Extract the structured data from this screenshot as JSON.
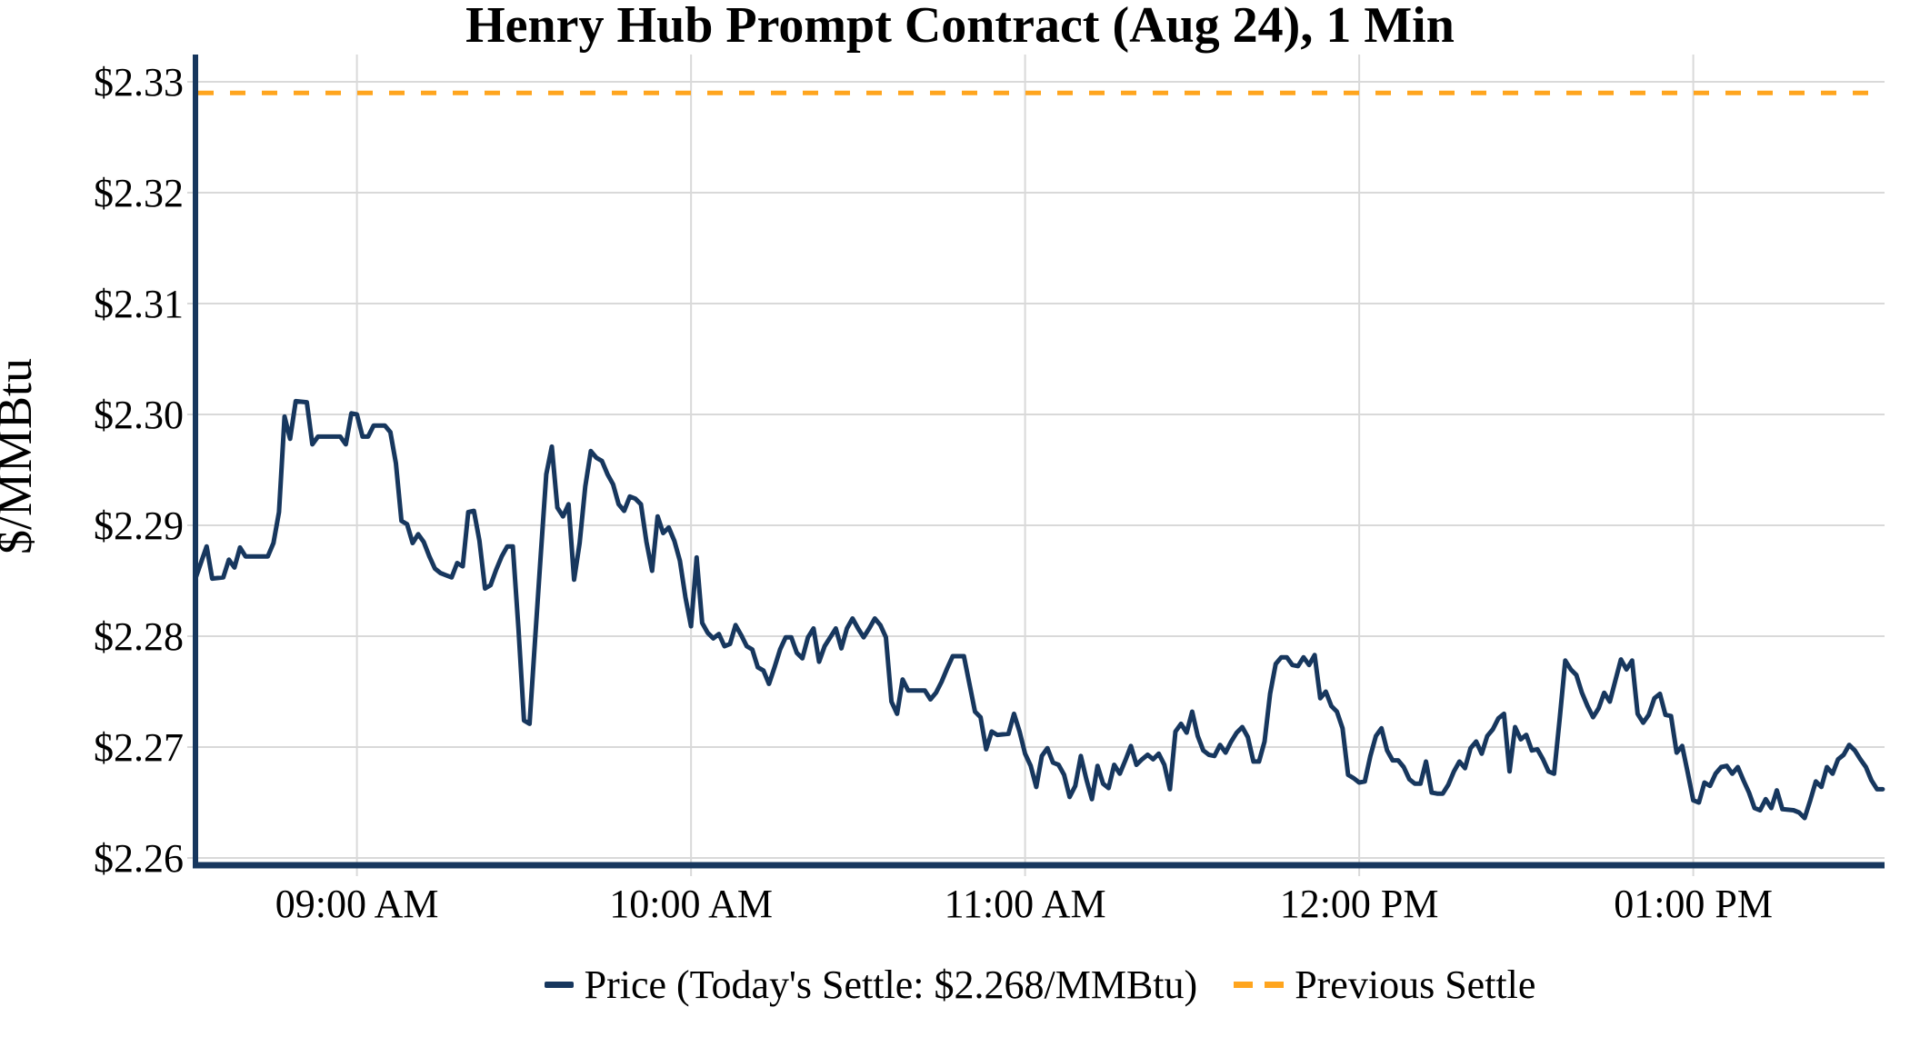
{
  "title": "Henry Hub Prompt Contract (Aug 24), 1 Min",
  "y_axis": {
    "title": "$/MMBtu",
    "tick_labels": [
      "$2.26",
      "$2.27",
      "$2.28",
      "$2.29",
      "$2.30",
      "$2.31",
      "$2.32",
      "$2.33"
    ],
    "tick_values": [
      2.26,
      2.27,
      2.28,
      2.29,
      2.3,
      2.31,
      2.32,
      2.33
    ]
  },
  "x_axis": {
    "tick_labels": [
      "09:00 AM",
      "10:00 AM",
      "11:00 AM",
      "12:00 PM",
      "01:00 PM"
    ],
    "tick_minutes": [
      29,
      89,
      149,
      209,
      269
    ],
    "start_time": "08:31 AM",
    "end_time": "01:34 PM"
  },
  "legend": {
    "price_label": "Price (Today's Settle: $2.268/MMBtu)",
    "prev_settle_label": "Previous Settle"
  },
  "todays_settle": "$2.268/MMBtu",
  "colors": {
    "price_line": "#17375E",
    "prev_settle_line": "#FFA51E",
    "grid": "#D9D9D9",
    "axis": "#17375E",
    "text": "#000000"
  },
  "chart_data": {
    "type": "line",
    "title": "Henry Hub Prompt Contract (Aug 24), 1 Min",
    "xlabel": "",
    "ylabel": "$/MMBtu",
    "x_unit": "minutes after 08:31 AM",
    "ylim": [
      2.2593,
      2.3325
    ],
    "grid": true,
    "legend_position": "bottom",
    "previous_settle": 2.329,
    "series": [
      {
        "name": "Price",
        "points": [
          [
            0,
            2.2852
          ],
          [
            2,
            2.2881
          ],
          [
            3,
            2.2852
          ],
          [
            5,
            2.2853
          ],
          [
            6,
            2.2869
          ],
          [
            7,
            2.2862
          ],
          [
            8,
            2.288
          ],
          [
            9,
            2.2872
          ],
          [
            13,
            2.2872
          ],
          [
            14,
            2.2884
          ],
          [
            15,
            2.2912
          ],
          [
            16,
            2.2998
          ],
          [
            17,
            2.2978
          ],
          [
            18,
            2.3012
          ],
          [
            20,
            2.3011
          ],
          [
            21,
            2.2973
          ],
          [
            22,
            2.298
          ],
          [
            26,
            2.298
          ],
          [
            27,
            2.2973
          ],
          [
            28,
            2.3001
          ],
          [
            29,
            2.3
          ],
          [
            30,
            2.298
          ],
          [
            31,
            2.298
          ],
          [
            32,
            2.299
          ],
          [
            34,
            2.299
          ],
          [
            35,
            2.2984
          ],
          [
            36,
            2.2956
          ],
          [
            37,
            2.2904
          ],
          [
            38,
            2.2901
          ],
          [
            39,
            2.2884
          ],
          [
            40,
            2.2892
          ],
          [
            41,
            2.2885
          ],
          [
            42,
            2.2872
          ],
          [
            43,
            2.2861
          ],
          [
            44,
            2.2857
          ],
          [
            45,
            2.2855
          ],
          [
            46,
            2.2853
          ],
          [
            47,
            2.2866
          ],
          [
            48,
            2.2863
          ],
          [
            49,
            2.2912
          ],
          [
            50,
            2.2913
          ],
          [
            51,
            2.2886
          ],
          [
            52,
            2.2843
          ],
          [
            53,
            2.2846
          ],
          [
            54,
            2.286
          ],
          [
            55,
            2.2872
          ],
          [
            56,
            2.2881
          ],
          [
            57,
            2.2881
          ],
          [
            58,
            2.2807
          ],
          [
            59,
            2.2724
          ],
          [
            60,
            2.2721
          ],
          [
            61,
            2.2797
          ],
          [
            62,
            2.2873
          ],
          [
            63,
            2.2946
          ],
          [
            64,
            2.2971
          ],
          [
            65,
            2.2916
          ],
          [
            66,
            2.2908
          ],
          [
            67,
            2.2919
          ],
          [
            68,
            2.2851
          ],
          [
            69,
            2.2884
          ],
          [
            70,
            2.2935
          ],
          [
            71,
            2.2967
          ],
          [
            72,
            2.2961
          ],
          [
            73,
            2.2958
          ],
          [
            74,
            2.2946
          ],
          [
            75,
            2.2937
          ],
          [
            76,
            2.2919
          ],
          [
            77,
            2.2913
          ],
          [
            78,
            2.2926
          ],
          [
            79,
            2.2924
          ],
          [
            80,
            2.2919
          ],
          [
            81,
            2.2885
          ],
          [
            82,
            2.2859
          ],
          [
            83,
            2.2908
          ],
          [
            84,
            2.2893
          ],
          [
            85,
            2.2898
          ],
          [
            86,
            2.2886
          ],
          [
            87,
            2.2868
          ],
          [
            88,
            2.2835
          ],
          [
            89,
            2.2809
          ],
          [
            90,
            2.2871
          ],
          [
            91,
            2.2812
          ],
          [
            92,
            2.2803
          ],
          [
            93,
            2.2798
          ],
          [
            94,
            2.2802
          ],
          [
            95,
            2.2791
          ],
          [
            96,
            2.2793
          ],
          [
            97,
            2.281
          ],
          [
            98,
            2.2801
          ],
          [
            99,
            2.2791
          ],
          [
            100,
            2.2788
          ],
          [
            101,
            2.2772
          ],
          [
            102,
            2.2769
          ],
          [
            103,
            2.2757
          ],
          [
            104,
            2.2772
          ],
          [
            105,
            2.2788
          ],
          [
            106,
            2.2799
          ],
          [
            107,
            2.2799
          ],
          [
            108,
            2.2785
          ],
          [
            109,
            2.278
          ],
          [
            110,
            2.2799
          ],
          [
            111,
            2.2807
          ],
          [
            112,
            2.2777
          ],
          [
            113,
            2.2791
          ],
          [
            114,
            2.2799
          ],
          [
            115,
            2.2807
          ],
          [
            116,
            2.2789
          ],
          [
            117,
            2.2807
          ],
          [
            118,
            2.2816
          ],
          [
            119,
            2.2807
          ],
          [
            120,
            2.2799
          ],
          [
            121,
            2.2807
          ],
          [
            122,
            2.2816
          ],
          [
            123,
            2.281
          ],
          [
            124,
            2.2799
          ],
          [
            125,
            2.2741
          ],
          [
            126,
            2.273
          ],
          [
            127,
            2.2761
          ],
          [
            128,
            2.2751
          ],
          [
            131,
            2.2751
          ],
          [
            132,
            2.2743
          ],
          [
            133,
            2.2749
          ],
          [
            134,
            2.2759
          ],
          [
            135,
            2.2771
          ],
          [
            136,
            2.2782
          ],
          [
            138,
            2.2782
          ],
          [
            139,
            2.2757
          ],
          [
            140,
            2.2732
          ],
          [
            141,
            2.2727
          ],
          [
            142,
            2.2698
          ],
          [
            143,
            2.2714
          ],
          [
            144,
            2.2711
          ],
          [
            146,
            2.2712
          ],
          [
            147,
            2.273
          ],
          [
            148,
            2.2714
          ],
          [
            149,
            2.2694
          ],
          [
            150,
            2.2683
          ],
          [
            151,
            2.2664
          ],
          [
            152,
            2.2692
          ],
          [
            153,
            2.2699
          ],
          [
            154,
            2.2686
          ],
          [
            155,
            2.2684
          ],
          [
            156,
            2.2675
          ],
          [
            157,
            2.2655
          ],
          [
            158,
            2.2665
          ],
          [
            159,
            2.2692
          ],
          [
            160,
            2.2671
          ],
          [
            161,
            2.2653
          ],
          [
            162,
            2.2683
          ],
          [
            163,
            2.2667
          ],
          [
            164,
            2.2663
          ],
          [
            165,
            2.2684
          ],
          [
            166,
            2.2676
          ],
          [
            167,
            2.2688
          ],
          [
            168,
            2.2701
          ],
          [
            169,
            2.2684
          ],
          [
            170,
            2.2689
          ],
          [
            171,
            2.2693
          ],
          [
            172,
            2.2689
          ],
          [
            173,
            2.2694
          ],
          [
            174,
            2.2684
          ],
          [
            175,
            2.2662
          ],
          [
            176,
            2.2714
          ],
          [
            177,
            2.2721
          ],
          [
            178,
            2.2713
          ],
          [
            179,
            2.2732
          ],
          [
            180,
            2.271
          ],
          [
            181,
            2.2697
          ],
          [
            182,
            2.2693
          ],
          [
            183,
            2.2692
          ],
          [
            184,
            2.2702
          ],
          [
            185,
            2.2695
          ],
          [
            186,
            2.2705
          ],
          [
            187,
            2.2713
          ],
          [
            188,
            2.2718
          ],
          [
            189,
            2.2709
          ],
          [
            190,
            2.2687
          ],
          [
            191,
            2.2687
          ],
          [
            192,
            2.2705
          ],
          [
            193,
            2.2748
          ],
          [
            194,
            2.2775
          ],
          [
            195,
            2.2781
          ],
          [
            196,
            2.2781
          ],
          [
            197,
            2.2774
          ],
          [
            198,
            2.2773
          ],
          [
            199,
            2.2781
          ],
          [
            200,
            2.2774
          ],
          [
            201,
            2.2783
          ],
          [
            202,
            2.2744
          ],
          [
            203,
            2.275
          ],
          [
            204,
            2.2737
          ],
          [
            205,
            2.2732
          ],
          [
            206,
            2.2717
          ],
          [
            207,
            2.2675
          ],
          [
            208,
            2.2672
          ],
          [
            209,
            2.2668
          ],
          [
            210,
            2.2669
          ],
          [
            211,
            2.2692
          ],
          [
            212,
            2.271
          ],
          [
            213,
            2.2717
          ],
          [
            214,
            2.2697
          ],
          [
            215,
            2.2688
          ],
          [
            216,
            2.2688
          ],
          [
            217,
            2.2682
          ],
          [
            218,
            2.2671
          ],
          [
            219,
            2.2667
          ],
          [
            220,
            2.2667
          ],
          [
            221,
            2.2687
          ],
          [
            222,
            2.2659
          ],
          [
            223,
            2.2658
          ],
          [
            224,
            2.2658
          ],
          [
            225,
            2.2666
          ],
          [
            226,
            2.2678
          ],
          [
            227,
            2.2687
          ],
          [
            228,
            2.2681
          ],
          [
            229,
            2.2699
          ],
          [
            230,
            2.2705
          ],
          [
            231,
            2.2694
          ],
          [
            232,
            2.271
          ],
          [
            233,
            2.2716
          ],
          [
            234,
            2.2726
          ],
          [
            235,
            2.273
          ],
          [
            236,
            2.2678
          ],
          [
            237,
            2.2718
          ],
          [
            238,
            2.2707
          ],
          [
            239,
            2.2711
          ],
          [
            240,
            2.2697
          ],
          [
            241,
            2.2698
          ],
          [
            242,
            2.2689
          ],
          [
            243,
            2.2678
          ],
          [
            244,
            2.2676
          ],
          [
            245,
            2.2725
          ],
          [
            246,
            2.2778
          ],
          [
            247,
            2.277
          ],
          [
            248,
            2.2765
          ],
          [
            249,
            2.2749
          ],
          [
            250,
            2.2737
          ],
          [
            251,
            2.2727
          ],
          [
            252,
            2.2735
          ],
          [
            253,
            2.2749
          ],
          [
            254,
            2.2741
          ],
          [
            255,
            2.276
          ],
          [
            256,
            2.2779
          ],
          [
            257,
            2.277
          ],
          [
            258,
            2.2778
          ],
          [
            259,
            2.273
          ],
          [
            260,
            2.2722
          ],
          [
            261,
            2.2729
          ],
          [
            262,
            2.2744
          ],
          [
            263,
            2.2748
          ],
          [
            264,
            2.2729
          ],
          [
            265,
            2.2728
          ],
          [
            266,
            2.2695
          ],
          [
            267,
            2.2701
          ],
          [
            268,
            2.2677
          ],
          [
            269,
            2.2652
          ],
          [
            270,
            2.265
          ],
          [
            271,
            2.2668
          ],
          [
            272,
            2.2665
          ],
          [
            273,
            2.2676
          ],
          [
            274,
            2.2682
          ],
          [
            275,
            2.2683
          ],
          [
            276,
            2.2676
          ],
          [
            277,
            2.2682
          ],
          [
            278,
            2.267
          ],
          [
            279,
            2.2659
          ],
          [
            280,
            2.2645
          ],
          [
            281,
            2.2643
          ],
          [
            282,
            2.2653
          ],
          [
            283,
            2.2645
          ],
          [
            284,
            2.2661
          ],
          [
            285,
            2.2644
          ],
          [
            287,
            2.2643
          ],
          [
            288,
            2.2641
          ],
          [
            289,
            2.2636
          ],
          [
            290,
            2.2652
          ],
          [
            291,
            2.2669
          ],
          [
            292,
            2.2664
          ],
          [
            293,
            2.2682
          ],
          [
            294,
            2.2676
          ],
          [
            295,
            2.2689
          ],
          [
            296,
            2.2693
          ],
          [
            297,
            2.2702
          ],
          [
            298,
            2.2697
          ],
          [
            299,
            2.2689
          ],
          [
            300,
            2.2682
          ],
          [
            301,
            2.267
          ],
          [
            302,
            2.2662
          ],
          [
            303,
            2.2662
          ]
        ]
      },
      {
        "name": "Previous Settle",
        "style": "dashed",
        "value": 2.329
      }
    ]
  }
}
